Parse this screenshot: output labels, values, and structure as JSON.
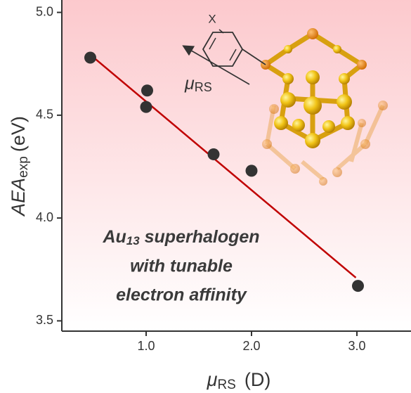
{
  "chart_data": {
    "type": "scatter",
    "x_label": {
      "symbol": "μ",
      "subscript": "RS",
      "unit": "(D)"
    },
    "y_label": {
      "symbol": "AEA",
      "subscript": "exp",
      "unit": "(eV)"
    },
    "annotation": {
      "line1": {
        "main": "Au",
        "subscript": "13",
        "rest": " superhalogen"
      },
      "line2": "with tunable",
      "line3": "electron affinity"
    },
    "inset": {
      "substituent": "X",
      "arrow_label": {
        "symbol": "μ",
        "subscript": "RS"
      }
    },
    "series": [
      {
        "color": "#333333",
        "x": [
          0.47,
          1.01,
          1.0,
          1.64,
          2.0,
          3.01
        ],
        "values": [
          4.78,
          4.62,
          4.54,
          4.31,
          4.23,
          3.67
        ]
      }
    ],
    "fit_line": {
      "color": "#c00000",
      "x": [
        0.48,
        2.99
      ],
      "values": [
        4.79,
        3.71
      ]
    },
    "xlim": [
      0.2,
      3.5
    ],
    "ylim": [
      3.45,
      5.05
    ],
    "xticks": [
      {
        "value": 1,
        "label": "1.0"
      },
      {
        "value": 2,
        "label": "2.0"
      },
      {
        "value": 3,
        "label": "3.0"
      }
    ],
    "yticks": [
      {
        "value": 3.5,
        "label": "3.5"
      },
      {
        "value": 4,
        "label": "4.0"
      },
      {
        "value": 4.5,
        "label": "4.5"
      },
      {
        "value": 5,
        "label": "5.0"
      }
    ],
    "grid": false
  }
}
